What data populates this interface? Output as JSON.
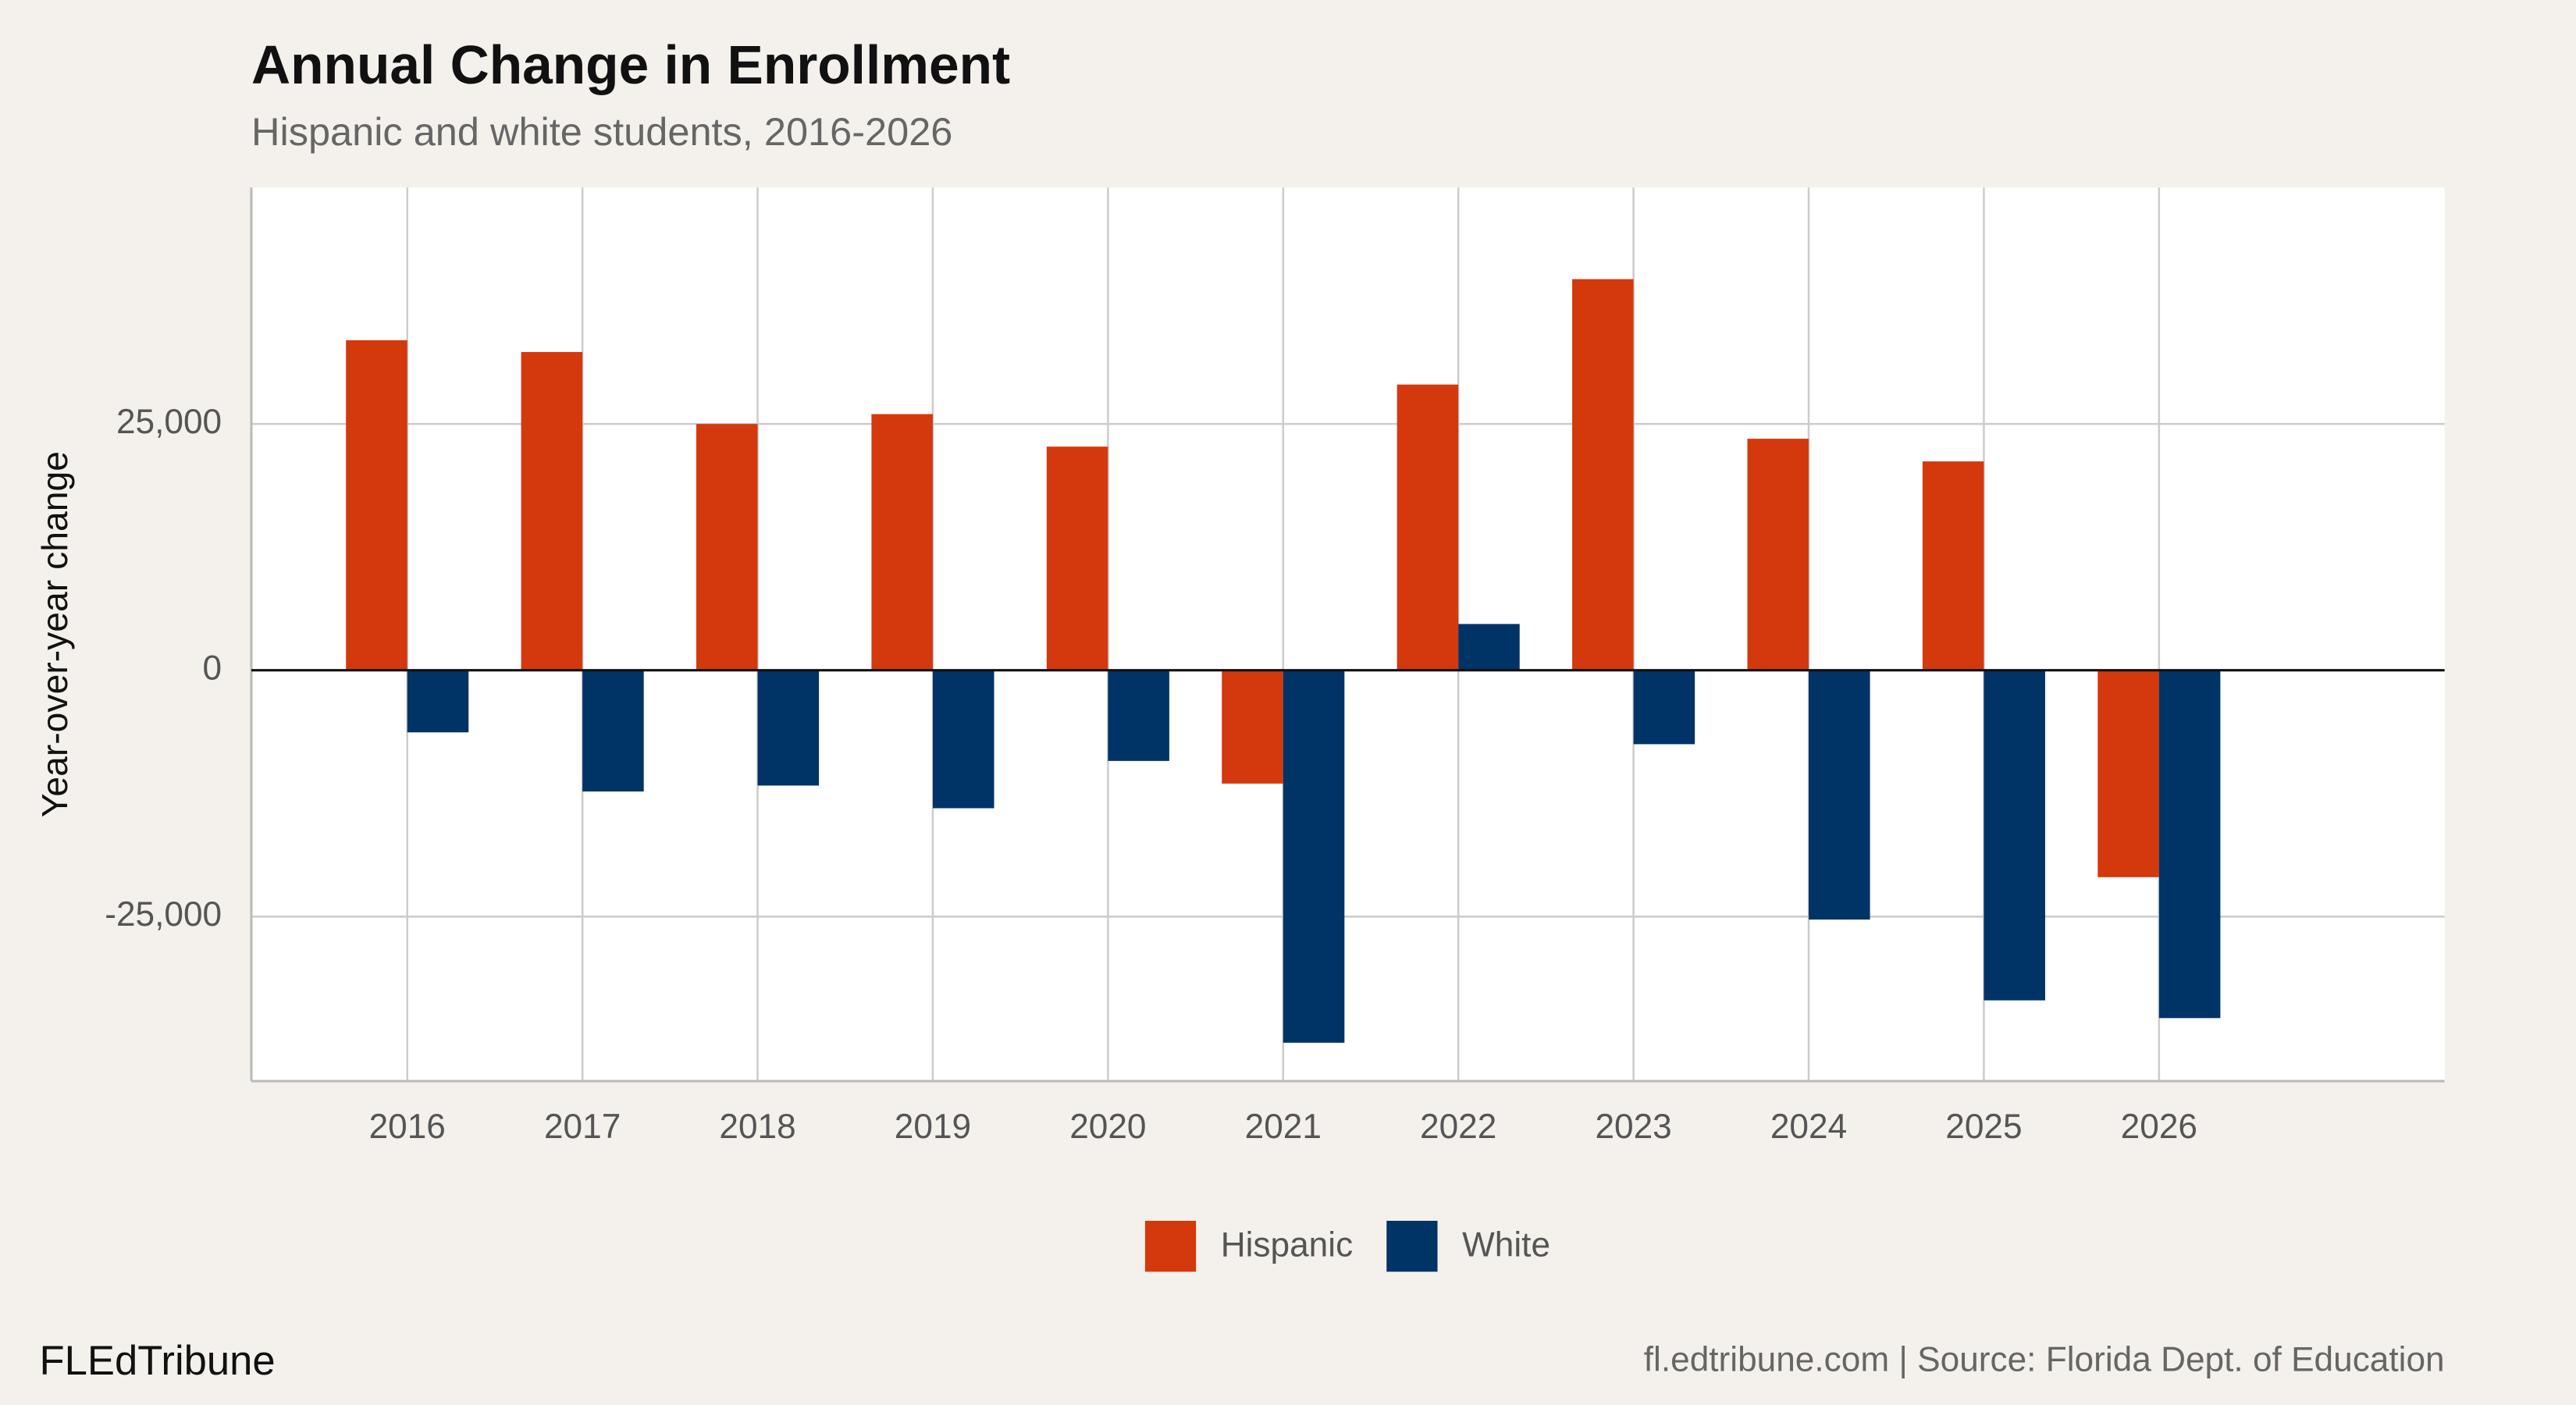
{
  "chart_data": {
    "type": "bar",
    "title": "Annual Change in Enrollment",
    "subtitle": "Hispanic and white students, 2016-2026",
    "y_label": "Year-over-year change",
    "x": [
      2016,
      2017,
      2018,
      2019,
      2020,
      2021,
      2022,
      2023,
      2024,
      2025,
      2026
    ],
    "xlim": [
      2015.11,
      2027.63
    ],
    "xticks": [
      2016,
      2017,
      2018,
      2019,
      2020,
      2021,
      2022,
      2023,
      2024,
      2025,
      2026
    ],
    "ylim": [
      -41700,
      49000
    ],
    "yticks": [
      {
        "value": -25000,
        "label": "-25,000"
      },
      0,
      {
        "value": 25000,
        "label": "25,000"
      }
    ],
    "grid": true,
    "legend": "bottom",
    "series": [
      {
        "name": "Hispanic",
        "color": "#d4380d",
        "values": [
          33500,
          32300,
          25000,
          26000,
          22700,
          -11500,
          29000,
          39700,
          23500,
          21200,
          -21000
        ]
      },
      {
        "name": "White",
        "color": "#003366",
        "values": [
          -6300,
          -12300,
          -11700,
          -14000,
          -9200,
          -37800,
          4700,
          -7500,
          -25300,
          -33500,
          -35300
        ]
      }
    ],
    "footer": {
      "brand": "FLEdTribune",
      "source": "fl.edtribune.com | Source: Florida Dept. of Education"
    }
  }
}
